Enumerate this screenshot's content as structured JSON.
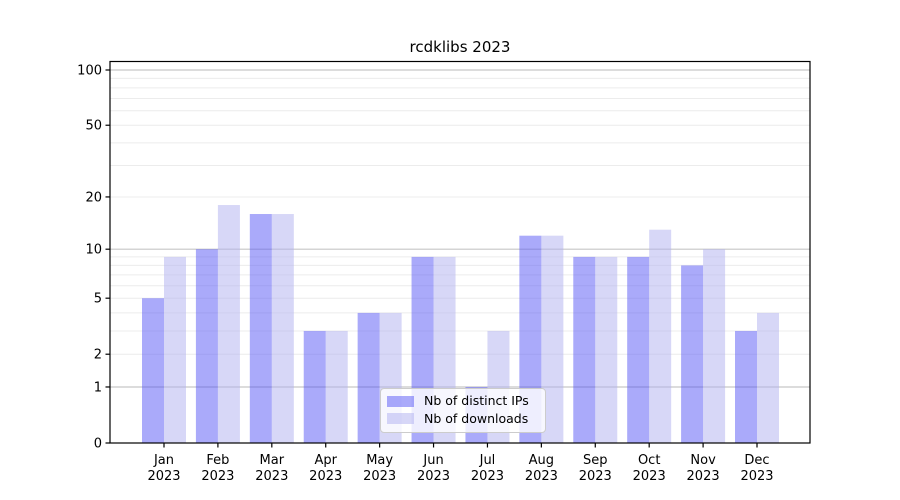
{
  "chart_data": {
    "type": "bar",
    "title": "rcdklibs 2023",
    "yscale": "log1p",
    "ylim": [
      0,
      110
    ],
    "y_ticks": [
      0,
      1,
      2,
      5,
      10,
      20,
      50,
      100
    ],
    "grid": {
      "minor_values": [
        2,
        3,
        4,
        5,
        6,
        7,
        8,
        9,
        20,
        30,
        40,
        50,
        60,
        70,
        80,
        90
      ],
      "major_values": [
        1,
        10,
        100
      ],
      "minor_color": "#ececec",
      "major_color": "#c6c6c6"
    },
    "axis_color": "#000000",
    "months": [
      "Jan",
      "Feb",
      "Mar",
      "Apr",
      "May",
      "Jun",
      "Jul",
      "Aug",
      "Sep",
      "Oct",
      "Nov",
      "Dec"
    ],
    "year": "2023",
    "categories": [
      "Jan 2023",
      "Feb 2023",
      "Mar 2023",
      "Apr 2023",
      "May 2023",
      "Jun 2023",
      "Jul 2023",
      "Aug 2023",
      "Sep 2023",
      "Oct 2023",
      "Nov 2023",
      "Dec 2023"
    ],
    "series": [
      {
        "name": "Nb of distinct IPs",
        "color": "rgba(85,85,245,0.5)",
        "values": [
          5,
          10,
          16,
          3,
          4,
          9,
          1,
          12,
          9,
          9,
          8,
          3
        ]
      },
      {
        "name": "Nb of downloads",
        "color": "rgba(175,175,240,0.5)",
        "values": [
          9,
          18,
          16,
          3,
          4,
          9,
          3,
          12,
          9,
          13,
          10,
          4
        ]
      }
    ],
    "legend_position": "inside-bottom-center"
  }
}
